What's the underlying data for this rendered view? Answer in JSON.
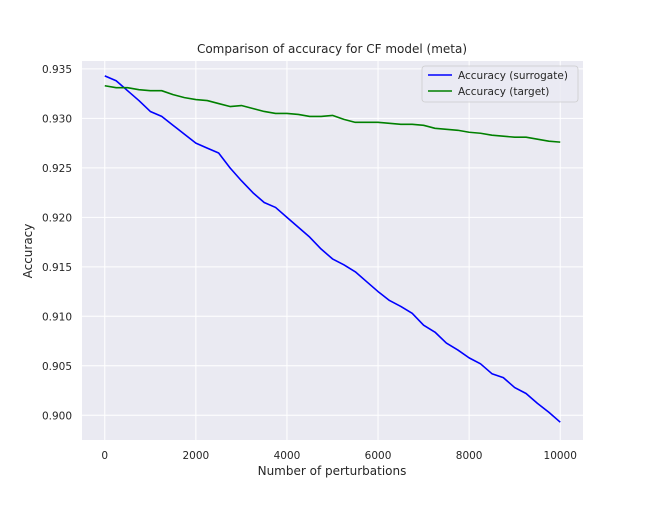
{
  "chart_data": {
    "type": "line",
    "title": "Comparison of accuracy for CF model (meta)",
    "xlabel": "Number of perturbations",
    "ylabel": "Accuracy",
    "xlim": [
      -500,
      10500
    ],
    "ylim": [
      0.8975,
      0.9358
    ],
    "xticks": [
      0,
      2000,
      4000,
      6000,
      8000,
      10000
    ],
    "xtick_labels": [
      "0",
      "2000",
      "4000",
      "6000",
      "8000",
      "10000"
    ],
    "yticks": [
      0.9,
      0.905,
      0.91,
      0.915,
      0.92,
      0.925,
      0.93,
      0.935
    ],
    "ytick_labels": [
      "0.900",
      "0.905",
      "0.910",
      "0.915",
      "0.920",
      "0.925",
      "0.930",
      "0.935"
    ],
    "grid": true,
    "legend_position": "top-right",
    "background": "#eaeaf2",
    "series": [
      {
        "name": "Accuracy (surrogate)",
        "color": "#0000ff",
        "x": [
          0,
          250,
          500,
          750,
          1000,
          1250,
          1500,
          1750,
          2000,
          2250,
          2500,
          2750,
          3000,
          3250,
          3500,
          3750,
          4000,
          4250,
          4500,
          4750,
          5000,
          5250,
          5500,
          5750,
          6000,
          6250,
          6500,
          6750,
          7000,
          7250,
          7500,
          7750,
          8000,
          8250,
          8500,
          8750,
          9000,
          9250,
          9500,
          9750,
          10000
        ],
        "y": [
          0.9343,
          0.9338,
          0.9328,
          0.9318,
          0.9307,
          0.9302,
          0.9293,
          0.9284,
          0.9275,
          0.927,
          0.9265,
          0.925,
          0.9237,
          0.9225,
          0.9215,
          0.921,
          0.92,
          0.919,
          0.918,
          0.9168,
          0.9158,
          0.9152,
          0.9145,
          0.9135,
          0.9125,
          0.9116,
          0.911,
          0.9103,
          0.9091,
          0.9084,
          0.9073,
          0.9066,
          0.9058,
          0.9052,
          0.9042,
          0.9038,
          0.9028,
          0.9022,
          0.9012,
          0.9003,
          0.8993
        ]
      },
      {
        "name": "Accuracy (target)",
        "color": "#008000",
        "x": [
          0,
          250,
          500,
          750,
          1000,
          1250,
          1500,
          1750,
          2000,
          2250,
          2500,
          2750,
          3000,
          3250,
          3500,
          3750,
          4000,
          4250,
          4500,
          4750,
          5000,
          5250,
          5500,
          5750,
          6000,
          6250,
          6500,
          6750,
          7000,
          7250,
          7500,
          7750,
          8000,
          8250,
          8500,
          8750,
          9000,
          9250,
          9500,
          9750,
          10000
        ],
        "y": [
          0.9333,
          0.9331,
          0.9331,
          0.9329,
          0.9328,
          0.9328,
          0.9324,
          0.9321,
          0.9319,
          0.9318,
          0.9315,
          0.9312,
          0.9313,
          0.931,
          0.9307,
          0.9305,
          0.9305,
          0.9304,
          0.9302,
          0.9302,
          0.9303,
          0.9299,
          0.9296,
          0.9296,
          0.9296,
          0.9295,
          0.9294,
          0.9294,
          0.9293,
          0.929,
          0.9289,
          0.9288,
          0.9286,
          0.9285,
          0.9283,
          0.9282,
          0.9281,
          0.9281,
          0.9279,
          0.9277,
          0.9276
        ]
      }
    ]
  }
}
